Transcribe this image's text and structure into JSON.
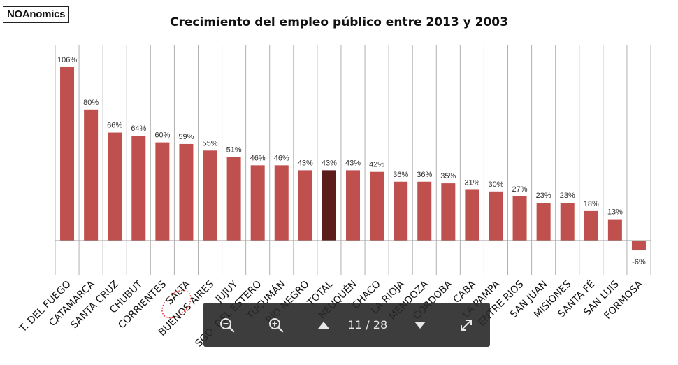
{
  "brand": "NOAnomics",
  "viewer": {
    "counter": "11 / 28",
    "buttons": [
      "zoom-out-icon",
      "zoom-in-icon",
      "chevron-up-icon",
      "chevron-down-icon",
      "fullscreen-icon"
    ]
  },
  "colors": {
    "bar": "#c0504d",
    "highlight_bar": "#5c1c1a",
    "grid": "#b0b0b0",
    "annotation": "#e0302c"
  },
  "chart_data": {
    "type": "bar",
    "title": "Crecimiento del empleo público entre 2013 y 2003",
    "xlabel": "",
    "ylabel": "",
    "ylim": [
      -15,
      120
    ],
    "grid": true,
    "legend": "none",
    "categories": [
      "T. DEL FUEGO",
      "CATAMARCA",
      "SANTA CRUZ",
      "CHUBUT",
      "CORRIENTES",
      "SALTA",
      "BUENOS AIRES",
      "JUJUY",
      "SGO. DEL ESTERO",
      "TUCUMÁN",
      "RÍO NEGRO",
      "TOTAL",
      "NEUQUÉN",
      "CHACO",
      "LA RIOJA",
      "MENDOZA",
      "CÓRDOBA",
      "CABA",
      "LA PAMPA",
      "ENTRE RÍOS",
      "SAN JUAN",
      "MISIONES",
      "SANTA FÉ",
      "SAN LUIS",
      "FORMOSA"
    ],
    "values": [
      106,
      80,
      66,
      64,
      60,
      59,
      55,
      51,
      46,
      46,
      43,
      43,
      43,
      42,
      36,
      36,
      35,
      31,
      30,
      27,
      23,
      23,
      18,
      13,
      -6
    ],
    "data_labels": [
      "106%",
      "80%",
      "66%",
      "64%",
      "60%",
      "59%",
      "55%",
      "51%",
      "46%",
      "46%",
      "43%",
      "43%",
      "43%",
      "42%",
      "36%",
      "36%",
      "35%",
      "31%",
      "30%",
      "27%",
      "23%",
      "23%",
      "18%",
      "13%",
      "-6%"
    ],
    "highlighted_category": "TOTAL",
    "circled_category": "SALTA"
  }
}
